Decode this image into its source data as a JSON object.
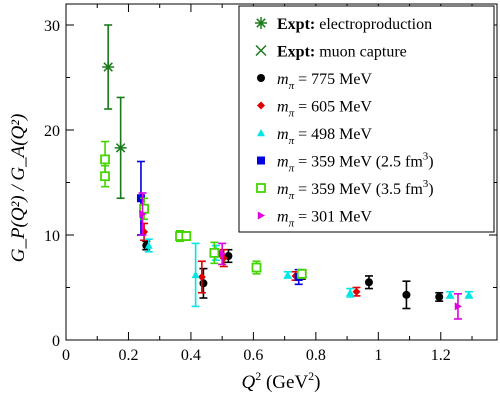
{
  "chart_data": {
    "type": "scatter",
    "xlabel_main": "Q",
    "xlabel_sup": "2",
    "xlabel_units_pre": " (GeV",
    "xlabel_units_sup": "2",
    "xlabel_units_post": ")",
    "ylabel": "G_P(Q²) / G_A(Q²)",
    "xlim": [
      0,
      1.38
    ],
    "ylim": [
      0,
      32
    ],
    "xticks": [
      0,
      0.2,
      0.4,
      0.6,
      0.8,
      1,
      1.2
    ],
    "xtick_labels": [
      "0",
      "0.2",
      "0.4",
      "0.6",
      "0.8",
      "1",
      "1.2"
    ],
    "yticks": [
      0,
      10,
      20,
      30
    ],
    "ytick_labels": [
      "0",
      "10",
      "20",
      "30"
    ],
    "legend_position": "top-right",
    "series": [
      {
        "name": "Expt: electroproduction",
        "legend_bold": "Expt:",
        "legend_rest": " electroproduction",
        "marker": "asterisk",
        "color": "#1a7a1a",
        "points": [
          {
            "x": 0.135,
            "y": 26.0,
            "yerr": 4.0
          },
          {
            "x": 0.175,
            "y": 18.3,
            "yerr": 4.8
          }
        ]
      },
      {
        "name": "Expt: muon capture",
        "legend_bold": "Expt:",
        "legend_rest": " muon capture",
        "marker": "x",
        "color": "#1a7a1a",
        "points": []
      },
      {
        "name": "m_π = 775 MeV",
        "legend_sym": "m",
        "legend_sub": "π",
        "legend_rest": " = 775 MeV",
        "marker": "circle",
        "color": "#000000",
        "points": [
          {
            "x": 0.257,
            "y": 9.0,
            "yerr": 0.4
          },
          {
            "x": 0.44,
            "y": 5.4,
            "yerr": 1.4
          },
          {
            "x": 0.52,
            "y": 8.0,
            "yerr": 0.6
          },
          {
            "x": 0.755,
            "y": 6.2,
            "yerr": 0.4
          },
          {
            "x": 0.97,
            "y": 5.5,
            "yerr": 0.6
          },
          {
            "x": 1.09,
            "y": 4.3,
            "yerr": 1.3
          },
          {
            "x": 1.195,
            "y": 4.1,
            "yerr": 0.4
          }
        ]
      },
      {
        "name": "m_π = 605 MeV",
        "legend_sym": "m",
        "legend_sub": "π",
        "legend_rest": " = 605 MeV",
        "marker": "diamond",
        "color": "#e00000",
        "points": [
          {
            "x": 0.25,
            "y": 10.3,
            "yerr": 0.8
          },
          {
            "x": 0.435,
            "y": 6.0,
            "yerr": 1.5
          },
          {
            "x": 0.505,
            "y": 7.8,
            "yerr": 0.8
          },
          {
            "x": 0.735,
            "y": 6.1,
            "yerr": 0.4
          },
          {
            "x": 0.93,
            "y": 4.6,
            "yerr": 0.4
          }
        ]
      },
      {
        "name": "m_π = 498 MeV",
        "legend_sym": "m",
        "legend_sub": "π",
        "legend_rest": " = 498 MeV",
        "marker": "triangle-up",
        "color": "#00e5e5",
        "points": [
          {
            "x": 0.265,
            "y": 9.0,
            "yerr": 0.6
          },
          {
            "x": 0.415,
            "y": 6.2,
            "yerr": 3.0
          },
          {
            "x": 0.48,
            "y": 8.3,
            "yerr": 0.7
          },
          {
            "x": 0.71,
            "y": 6.2,
            "yerr": 0.3
          },
          {
            "x": 0.91,
            "y": 4.5,
            "yerr": 0.4
          },
          {
            "x": 1.23,
            "y": 4.3,
            "yerr": 0.3
          },
          {
            "x": 1.29,
            "y": 4.3,
            "yerr": 0.3
          }
        ]
      },
      {
        "name": "m_π = 359 MeV (2.5 fm³)",
        "legend_sym": "m",
        "legend_sub": "π",
        "legend_rest": " = 359 MeV (2.5 fm",
        "legend_sup": "3",
        "legend_post": ")",
        "marker": "square",
        "color": "#0000e0",
        "points": [
          {
            "x": 0.24,
            "y": 13.5,
            "yerr": 3.5
          },
          {
            "x": 0.745,
            "y": 6.0,
            "yerr": 0.7
          }
        ]
      },
      {
        "name": "m_π = 359 MeV (3.5 fm³)",
        "legend_sym": "m",
        "legend_sub": "π",
        "legend_rest": " = 359 MeV (3.5 fm",
        "legend_sup": "3",
        "legend_post": ")",
        "marker": "square-open",
        "color": "#44d400",
        "points": [
          {
            "x": 0.125,
            "y": 17.2,
            "yerr": 1.7
          },
          {
            "x": 0.125,
            "y": 15.6,
            "yerr": 1.0
          },
          {
            "x": 0.25,
            "y": 12.5,
            "yerr": 1.0
          },
          {
            "x": 0.365,
            "y": 9.9,
            "yerr": 0.5
          },
          {
            "x": 0.385,
            "y": 9.9,
            "yerr": 0.4
          },
          {
            "x": 0.475,
            "y": 8.3,
            "yerr": 1.0
          },
          {
            "x": 0.61,
            "y": 6.9,
            "yerr": 0.6
          },
          {
            "x": 0.755,
            "y": 6.3,
            "yerr": 0.4
          }
        ]
      },
      {
        "name": "m_π = 301 MeV",
        "legend_sym": "m",
        "legend_sub": "π",
        "legend_rest": " = 301 MeV",
        "marker": "triangle-right",
        "color": "#e000e0",
        "points": [
          {
            "x": 0.245,
            "y": 12.0,
            "yerr": 2.0
          },
          {
            "x": 0.5,
            "y": 8.2,
            "yerr": 1.0
          },
          {
            "x": 1.255,
            "y": 3.2,
            "yerr": 1.2
          }
        ]
      }
    ]
  }
}
